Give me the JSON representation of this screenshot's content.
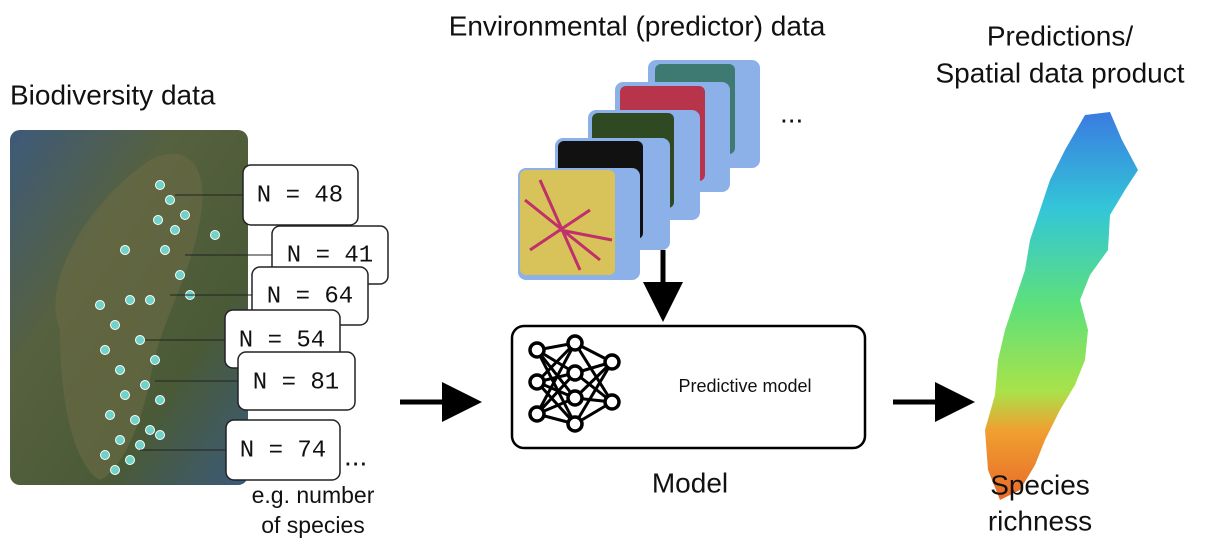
{
  "biodiversity": {
    "title": "Biodiversity data",
    "counts": [
      "N = 48",
      "N = 41",
      "N = 64",
      "N = 54",
      "N = 81",
      "N = 74"
    ],
    "ellipsis": "...",
    "caption": [
      "e.g. number",
      "of species"
    ]
  },
  "environmental": {
    "title": "Environmental (predictor) data",
    "ellipsis": "..."
  },
  "model": {
    "box_label": "Predictive model",
    "title": "Model"
  },
  "predictions": {
    "title": [
      "Predictions/",
      "Spatial data product"
    ],
    "caption": [
      "Species",
      "richness"
    ]
  }
}
